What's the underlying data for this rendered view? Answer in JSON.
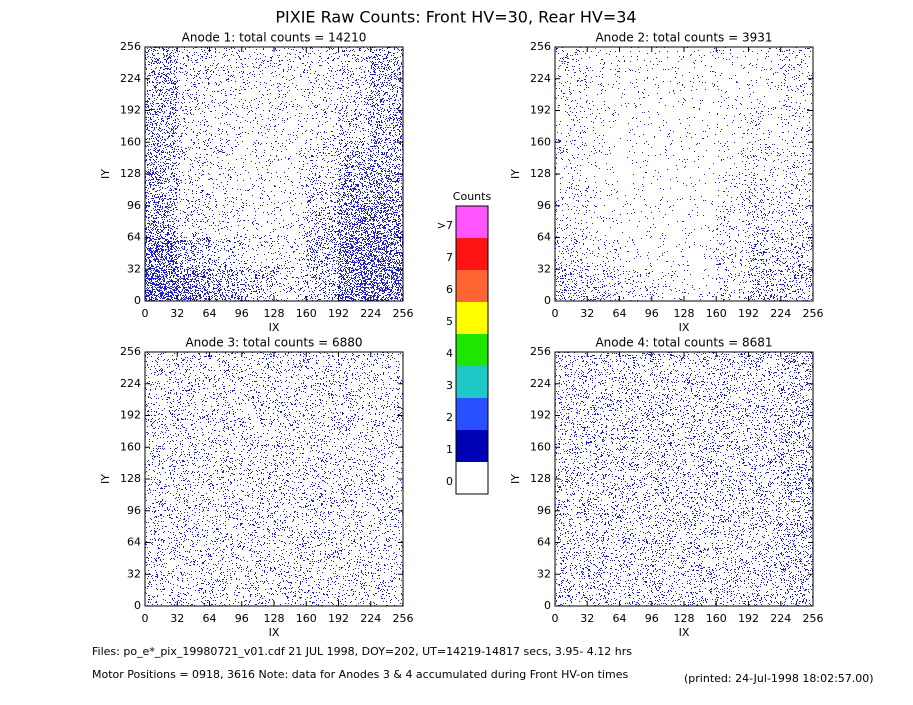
{
  "title": "PIXIE Raw Counts:  Front HV=30, Rear HV=34",
  "footer": [
    "Files: po_e*_pix_19980721_v01.cdf    21 JUL 1998, DOY=202, UT=14219-14817 secs,  3.95- 4.12 hrs",
    "Motor Positions = 0918, 3616   Note: data for Anodes 3 & 4 accumulated during Front HV-on times",
    "(printed: 24-Jul-1998 18:02:57.00)"
  ],
  "chart_data": [
    {
      "type": "heatmap",
      "title": "Anode 1: total counts = 14210",
      "x_label": "IX",
      "y_label": "IY",
      "color": "#1e1ed2",
      "xlim": [
        0,
        256
      ],
      "ylim": [
        0,
        256
      ],
      "xticks": [
        0,
        32,
        64,
        96,
        128,
        160,
        192,
        224,
        256
      ],
      "yticks": [
        0,
        32,
        64,
        96,
        128,
        160,
        192,
        224,
        256
      ],
      "values": [
        [
          250,
          120,
          90,
          80,
          80,
          90,
          120,
          250
        ],
        [
          250,
          100,
          70,
          60,
          60,
          80,
          120,
          250
        ],
        [
          250,
          90,
          60,
          50,
          50,
          70,
          150,
          260
        ],
        [
          260,
          90,
          60,
          50,
          50,
          100,
          250,
          280
        ],
        [
          280,
          90,
          60,
          50,
          50,
          150,
          350,
          350
        ],
        [
          320,
          100,
          70,
          50,
          60,
          200,
          450,
          450
        ],
        [
          550,
          250,
          120,
          80,
          80,
          250,
          550,
          550
        ],
        [
          650,
          500,
          300,
          200,
          100,
          200,
          600,
          600
        ]
      ]
    },
    {
      "type": "heatmap",
      "title": "Anode 2: total counts = 3931",
      "x_label": "IX",
      "y_label": "IY",
      "color": "#1e1ed2",
      "xlim": [
        0,
        256
      ],
      "ylim": [
        0,
        256
      ],
      "xticks": [
        0,
        32,
        64,
        96,
        128,
        160,
        192,
        224,
        256
      ],
      "yticks": [
        0,
        32,
        64,
        96,
        128,
        160,
        192,
        224,
        256
      ],
      "values": [
        [
          80,
          40,
          30,
          30,
          30,
          30,
          40,
          80
        ],
        [
          70,
          35,
          30,
          25,
          25,
          30,
          40,
          70
        ],
        [
          60,
          30,
          25,
          20,
          20,
          30,
          50,
          60
        ],
        [
          60,
          30,
          20,
          20,
          20,
          40,
          70,
          70
        ],
        [
          60,
          30,
          20,
          20,
          20,
          60,
          100,
          80
        ],
        [
          70,
          30,
          20,
          20,
          20,
          80,
          120,
          100
        ],
        [
          110,
          60,
          30,
          25,
          25,
          80,
          150,
          140
        ],
        [
          180,
          140,
          80,
          50,
          30,
          80,
          200,
          180
        ]
      ]
    },
    {
      "type": "heatmap",
      "title": "Anode 3: total counts = 6880",
      "x_label": "IX",
      "y_label": "IY",
      "color": "#1e1ed2",
      "xlim": [
        0,
        256
      ],
      "ylim": [
        0,
        256
      ],
      "xticks": [
        0,
        32,
        64,
        96,
        128,
        160,
        192,
        224,
        256
      ],
      "yticks": [
        0,
        32,
        64,
        96,
        128,
        160,
        192,
        224,
        256
      ],
      "values": [
        [
          110,
          110,
          105,
          105,
          110,
          110,
          105,
          100
        ],
        [
          110,
          110,
          105,
          105,
          110,
          110,
          105,
          100
        ],
        [
          110,
          110,
          105,
          105,
          110,
          110,
          105,
          100
        ],
        [
          110,
          110,
          105,
          105,
          110,
          110,
          105,
          100
        ],
        [
          110,
          110,
          105,
          105,
          110,
          110,
          105,
          100
        ],
        [
          110,
          110,
          105,
          105,
          110,
          110,
          105,
          100
        ],
        [
          110,
          110,
          105,
          105,
          110,
          110,
          105,
          100
        ],
        [
          110,
          110,
          105,
          105,
          110,
          110,
          105,
          100
        ]
      ]
    },
    {
      "type": "heatmap",
      "title": "Anode 4: total counts = 8681",
      "x_label": "IX",
      "y_label": "IY",
      "color": "#1e1ed2",
      "xlim": [
        0,
        256
      ],
      "ylim": [
        0,
        256
      ],
      "xticks": [
        0,
        32,
        64,
        96,
        128,
        160,
        192,
        224,
        256
      ],
      "yticks": [
        0,
        32,
        64,
        96,
        128,
        160,
        192,
        224,
        256
      ],
      "values": [
        [
          130,
          130,
          130,
          130,
          130,
          130,
          130,
          180
        ],
        [
          130,
          130,
          130,
          130,
          130,
          130,
          130,
          180
        ],
        [
          130,
          130,
          130,
          130,
          130,
          130,
          130,
          180
        ],
        [
          130,
          130,
          130,
          130,
          130,
          130,
          130,
          180
        ],
        [
          130,
          130,
          130,
          130,
          130,
          130,
          130,
          180
        ],
        [
          130,
          130,
          130,
          130,
          130,
          130,
          130,
          180
        ],
        [
          130,
          130,
          130,
          130,
          130,
          130,
          130,
          180
        ],
        [
          130,
          130,
          130,
          130,
          130,
          130,
          130,
          180
        ]
      ]
    },
    {
      "type": "colorbar",
      "title": "Counts",
      "labels": [
        0,
        1,
        2,
        3,
        4,
        5,
        6,
        7,
        ">7"
      ],
      "colors": [
        "#ffffff",
        "#0000b4",
        "#2850ff",
        "#1ec8c8",
        "#1ee600",
        "#ffff00",
        "#ff6432",
        "#ff1414",
        "#ff55ff"
      ]
    }
  ]
}
